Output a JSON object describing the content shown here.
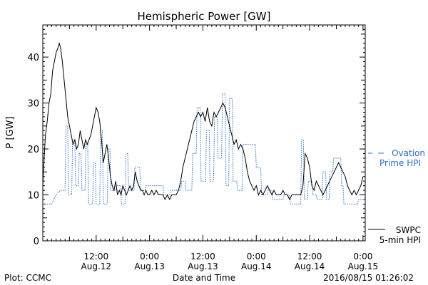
{
  "colors": {
    "swpc": "#000000",
    "ovation": "#2f6ec8",
    "axis": "#000000",
    "background": "#ffffff"
  },
  "chart_data": {
    "type": "line",
    "title": "Hemispheric Power [GW]",
    "xlabel": "Date and Time",
    "ylabel": "P [GW]",
    "x_unit": "hours from Aug.11 12:00",
    "xlim": [
      0,
      72.5
    ],
    "ylim": [
      0,
      47
    ],
    "y_ticks": [
      0,
      10,
      20,
      30,
      40
    ],
    "x_ticks": [
      {
        "x": 12,
        "time": "12:00",
        "date": "Aug.12"
      },
      {
        "x": 24,
        "time": "0:00",
        "date": "Aug.13"
      },
      {
        "x": 36,
        "time": "12:00",
        "date": "Aug.13"
      },
      {
        "x": 48,
        "time": "0:00",
        "date": "Aug.14"
      },
      {
        "x": 60,
        "time": "12:00",
        "date": "Aug.14"
      },
      {
        "x": 72,
        "time": "0:00",
        "date": "Aug.15"
      }
    ],
    "grid": false,
    "legend_position": "right",
    "series": [
      {
        "name": "Ovation Prime HPI",
        "legend_lines": [
          "Ovation",
          "Prime HPI"
        ],
        "style": "dotted",
        "points": [
          [
            0,
            8
          ],
          [
            2,
            8
          ],
          [
            2.5,
            9
          ],
          [
            3,
            10
          ],
          [
            4,
            11
          ],
          [
            5,
            11
          ],
          [
            5.2,
            25
          ],
          [
            5.6,
            25
          ],
          [
            5.8,
            10
          ],
          [
            6.5,
            10
          ],
          [
            6.7,
            22
          ],
          [
            7.2,
            22
          ],
          [
            7.4,
            12
          ],
          [
            8,
            12
          ],
          [
            8.2,
            19
          ],
          [
            8.6,
            19
          ],
          [
            8.8,
            11
          ],
          [
            9.5,
            11
          ],
          [
            9.7,
            21
          ],
          [
            10.1,
            21
          ],
          [
            10.3,
            8
          ],
          [
            11.2,
            8
          ],
          [
            11.4,
            17
          ],
          [
            11.8,
            17
          ],
          [
            12,
            8
          ],
          [
            12.8,
            8
          ],
          [
            13,
            24
          ],
          [
            13.4,
            24
          ],
          [
            13.6,
            8
          ],
          [
            14.5,
            8
          ],
          [
            14.7,
            20
          ],
          [
            15.1,
            20
          ],
          [
            15.3,
            11
          ],
          [
            16.5,
            11
          ],
          [
            16.7,
            12
          ],
          [
            17.5,
            12
          ],
          [
            17.7,
            8
          ],
          [
            18.5,
            8
          ],
          [
            18.7,
            19
          ],
          [
            19.1,
            19
          ],
          [
            19.3,
            11
          ],
          [
            20.5,
            11
          ],
          [
            20.7,
            16
          ],
          [
            21.8,
            16
          ],
          [
            22,
            11
          ],
          [
            23,
            11
          ],
          [
            23.2,
            12
          ],
          [
            27,
            12
          ],
          [
            27.2,
            10
          ],
          [
            28.5,
            10
          ],
          [
            28.7,
            11
          ],
          [
            31,
            11
          ],
          [
            31.2,
            13
          ],
          [
            32,
            13
          ],
          [
            32.2,
            11
          ],
          [
            33.5,
            11
          ],
          [
            33.7,
            19
          ],
          [
            34.5,
            19
          ],
          [
            34.7,
            29
          ],
          [
            35.4,
            29
          ],
          [
            35.6,
            13
          ],
          [
            36.6,
            13
          ],
          [
            36.8,
            24
          ],
          [
            37.4,
            24
          ],
          [
            37.6,
            13
          ],
          [
            38.4,
            13
          ],
          [
            38.6,
            27
          ],
          [
            39.2,
            27
          ],
          [
            39.4,
            18
          ],
          [
            40.2,
            18
          ],
          [
            40.4,
            32
          ],
          [
            41,
            32
          ],
          [
            41.2,
            12
          ],
          [
            41.8,
            12
          ],
          [
            42,
            31
          ],
          [
            42.6,
            31
          ],
          [
            42.8,
            13
          ],
          [
            43.6,
            13
          ],
          [
            43.8,
            11
          ],
          [
            44.8,
            11
          ],
          [
            45,
            21
          ],
          [
            47.8,
            21
          ],
          [
            48,
            16
          ],
          [
            49,
            16
          ],
          [
            49.2,
            10
          ],
          [
            50.5,
            10
          ],
          [
            50.7,
            11
          ],
          [
            51.5,
            11
          ],
          [
            51.7,
            9
          ],
          [
            54,
            9
          ],
          [
            54.2,
            10
          ],
          [
            55.5,
            10
          ],
          [
            55.7,
            8
          ],
          [
            58,
            8
          ],
          [
            58.2,
            22
          ],
          [
            58.6,
            22
          ],
          [
            58.8,
            9
          ],
          [
            59.5,
            9
          ],
          [
            59.7,
            13
          ],
          [
            60.5,
            13
          ],
          [
            60.7,
            10
          ],
          [
            61.5,
            10
          ],
          [
            61.7,
            9
          ],
          [
            62.8,
            9
          ],
          [
            63,
            15
          ],
          [
            63.6,
            15
          ],
          [
            63.8,
            9
          ],
          [
            64.4,
            9
          ],
          [
            64.6,
            15
          ],
          [
            65.2,
            15
          ],
          [
            65.4,
            18
          ],
          [
            67,
            18
          ],
          [
            67.2,
            12
          ],
          [
            67.5,
            12
          ],
          [
            67.7,
            8
          ],
          [
            70.8,
            8
          ],
          [
            71,
            9
          ],
          [
            72.5,
            9
          ]
        ]
      },
      {
        "name": "SWPC 5-min HPI",
        "legend_lines": [
          "SWPC",
          "5-min HPI"
        ],
        "style": "solid",
        "points": [
          [
            0,
            12
          ],
          [
            0.3,
            18
          ],
          [
            0.6,
            23
          ],
          [
            1,
            26
          ],
          [
            1.4,
            30
          ],
          [
            1.8,
            32
          ],
          [
            2.2,
            37
          ],
          [
            2.6,
            39
          ],
          [
            3,
            41
          ],
          [
            3.4,
            42
          ],
          [
            3.7,
            43
          ],
          [
            4,
            42
          ],
          [
            4.4,
            39
          ],
          [
            4.8,
            35
          ],
          [
            5.2,
            31
          ],
          [
            5.6,
            27
          ],
          [
            6,
            25
          ],
          [
            6.4,
            23
          ],
          [
            6.8,
            21
          ],
          [
            7.2,
            22
          ],
          [
            7.6,
            20
          ],
          [
            8,
            21
          ],
          [
            8.4,
            24
          ],
          [
            8.8,
            22
          ],
          [
            9.2,
            20
          ],
          [
            9.6,
            22
          ],
          [
            10,
            21
          ],
          [
            10.4,
            22
          ],
          [
            10.8,
            23
          ],
          [
            11.2,
            25
          ],
          [
            11.6,
            27
          ],
          [
            12,
            29
          ],
          [
            12.4,
            28
          ],
          [
            12.8,
            26
          ],
          [
            13.2,
            22
          ],
          [
            13.6,
            17
          ],
          [
            14,
            19
          ],
          [
            14.4,
            21
          ],
          [
            14.8,
            18
          ],
          [
            15.2,
            14
          ],
          [
            15.6,
            12
          ],
          [
            16,
            11
          ],
          [
            16.4,
            13
          ],
          [
            16.8,
            10
          ],
          [
            17.2,
            11
          ],
          [
            17.6,
            10
          ],
          [
            18,
            12
          ],
          [
            18.4,
            11
          ],
          [
            18.8,
            10
          ],
          [
            19.2,
            11
          ],
          [
            19.6,
            12
          ],
          [
            20,
            11
          ],
          [
            20.4,
            12
          ],
          [
            20.8,
            15
          ],
          [
            21.2,
            13
          ],
          [
            21.6,
            12
          ],
          [
            22,
            11
          ],
          [
            22.4,
            11
          ],
          [
            22.8,
            10
          ],
          [
            23.2,
            11
          ],
          [
            23.6,
            10
          ],
          [
            24,
            10
          ],
          [
            24.5,
            11
          ],
          [
            25,
            10
          ],
          [
            25.5,
            11
          ],
          [
            26,
            10
          ],
          [
            26.5,
            10
          ],
          [
            27,
            10
          ],
          [
            27.5,
            9
          ],
          [
            28,
            10
          ],
          [
            28.5,
            9
          ],
          [
            29,
            10
          ],
          [
            29.5,
            10
          ],
          [
            30,
            10
          ],
          [
            30.5,
            11
          ],
          [
            31,
            13
          ],
          [
            31.5,
            16
          ],
          [
            32,
            18
          ],
          [
            32.5,
            20
          ],
          [
            33,
            22
          ],
          [
            33.5,
            24
          ],
          [
            34,
            26
          ],
          [
            34.5,
            27
          ],
          [
            35,
            28
          ],
          [
            35.5,
            27
          ],
          [
            36,
            28
          ],
          [
            36.5,
            26
          ],
          [
            37,
            29
          ],
          [
            37.5,
            26
          ],
          [
            38,
            25
          ],
          [
            38.5,
            28
          ],
          [
            39,
            27
          ],
          [
            39.5,
            28
          ],
          [
            40,
            29
          ],
          [
            40.5,
            30
          ],
          [
            41,
            29
          ],
          [
            41.5,
            27
          ],
          [
            42,
            25
          ],
          [
            42.5,
            23
          ],
          [
            43,
            21
          ],
          [
            43.5,
            22
          ],
          [
            44,
            20
          ],
          [
            44.5,
            21
          ],
          [
            45,
            20
          ],
          [
            45.5,
            18
          ],
          [
            46,
            15
          ],
          [
            46.5,
            13
          ],
          [
            47,
            12
          ],
          [
            47.5,
            11
          ],
          [
            48,
            12
          ],
          [
            48.5,
            10
          ],
          [
            49,
            11
          ],
          [
            49.5,
            10
          ],
          [
            50,
            11
          ],
          [
            50.5,
            12
          ],
          [
            51,
            11
          ],
          [
            51.5,
            10
          ],
          [
            52,
            11
          ],
          [
            52.5,
            10
          ],
          [
            53,
            10
          ],
          [
            53.5,
            10
          ],
          [
            54,
            11
          ],
          [
            54.5,
            10
          ],
          [
            55,
            10
          ],
          [
            55.5,
            9
          ],
          [
            56,
            10
          ],
          [
            56.5,
            10
          ],
          [
            57,
            10
          ],
          [
            57.5,
            10
          ],
          [
            58,
            10
          ],
          [
            58.5,
            12
          ],
          [
            59,
            19
          ],
          [
            59.5,
            18
          ],
          [
            60,
            16
          ],
          [
            60.5,
            12
          ],
          [
            61,
            11
          ],
          [
            61.5,
            13
          ],
          [
            62,
            12
          ],
          [
            62.5,
            11
          ],
          [
            63,
            10
          ],
          [
            63.5,
            11
          ],
          [
            64,
            12
          ],
          [
            64.5,
            13
          ],
          [
            65,
            14
          ],
          [
            65.5,
            15
          ],
          [
            66,
            16
          ],
          [
            66.5,
            17
          ],
          [
            67,
            16
          ],
          [
            67.5,
            15
          ],
          [
            68,
            14
          ],
          [
            68.5,
            12
          ],
          [
            69,
            11
          ],
          [
            69.5,
            10
          ],
          [
            70,
            11
          ],
          [
            70.5,
            10
          ],
          [
            71,
            11
          ],
          [
            71.5,
            12
          ],
          [
            72,
            14
          ]
        ]
      }
    ]
  },
  "footer": {
    "plot_credit": "Plot: CCMC",
    "timestamp": "2016/08/15 01:26:02"
  }
}
